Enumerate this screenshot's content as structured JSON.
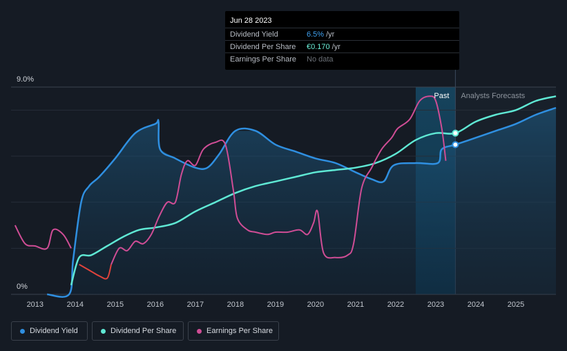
{
  "tooltip": {
    "date": "Jun 28 2023",
    "rows": [
      {
        "label": "Dividend Yield",
        "value": "6.5%",
        "unit": "/yr",
        "color": "#3fa0ef"
      },
      {
        "label": "Dividend Per Share",
        "value": "€0.170",
        "unit": "/yr",
        "color": "#6cf0d9"
      },
      {
        "label": "Earnings Per Share",
        "value": "No data",
        "unit": "",
        "color": "#6b7077"
      }
    ]
  },
  "legend": [
    {
      "label": "Dividend Yield",
      "color": "#2f8fe0"
    },
    {
      "label": "Dividend Per Share",
      "color": "#5fe8d4"
    },
    {
      "label": "Earnings Per Share",
      "color": "#cf4d95"
    }
  ],
  "chart_data": {
    "type": "line",
    "ylabel_top": "9.0%",
    "ylabel_bottom": "0%",
    "ylim": [
      0,
      9
    ],
    "xlim": [
      2012.4,
      2026.0
    ],
    "xticks": [
      "2013",
      "2014",
      "2015",
      "2016",
      "2017",
      "2018",
      "2019",
      "2020",
      "2021",
      "2022",
      "2023",
      "2024",
      "2025"
    ],
    "past_label": "Past",
    "forecast_label": "Analysts Forecasts",
    "past_shade_start": 2022.5,
    "now": 2023.49,
    "series": [
      {
        "name": "Dividend Yield",
        "color": "#2f8fe0",
        "points": [
          [
            2013.3,
            0
          ],
          [
            2013.85,
            0
          ],
          [
            2013.95,
            1.5
          ],
          [
            2014.15,
            4.0
          ],
          [
            2014.35,
            4.7
          ],
          [
            2014.6,
            5.1
          ],
          [
            2015.0,
            5.9
          ],
          [
            2015.5,
            7.0
          ],
          [
            2016.0,
            7.4
          ],
          [
            2016.08,
            7.5
          ],
          [
            2016.12,
            6.3
          ],
          [
            2016.5,
            5.9
          ],
          [
            2017.0,
            5.5
          ],
          [
            2017.3,
            5.5
          ],
          [
            2017.6,
            6.1
          ],
          [
            2018.0,
            7.1
          ],
          [
            2018.5,
            7.1
          ],
          [
            2019.0,
            6.5
          ],
          [
            2019.5,
            6.2
          ],
          [
            2020.0,
            5.9
          ],
          [
            2020.5,
            5.7
          ],
          [
            2021.0,
            5.3
          ],
          [
            2021.4,
            5.0
          ],
          [
            2021.7,
            4.9
          ],
          [
            2021.95,
            5.6
          ],
          [
            2022.5,
            5.7
          ],
          [
            2023.05,
            5.7
          ],
          [
            2023.15,
            6.3
          ],
          [
            2023.49,
            6.5
          ],
          [
            2024.0,
            6.8
          ],
          [
            2024.5,
            7.1
          ],
          [
            2025.0,
            7.4
          ],
          [
            2025.5,
            7.8
          ],
          [
            2026.0,
            8.1
          ]
        ]
      },
      {
        "name": "Dividend Per Share",
        "color": "#5fe8d4",
        "points": [
          [
            2013.9,
            0.4
          ],
          [
            2014.1,
            1.6
          ],
          [
            2014.4,
            1.7
          ],
          [
            2014.8,
            2.1
          ],
          [
            2015.2,
            2.5
          ],
          [
            2015.6,
            2.8
          ],
          [
            2016.0,
            2.9
          ],
          [
            2016.5,
            3.1
          ],
          [
            2017.0,
            3.6
          ],
          [
            2017.5,
            4.0
          ],
          [
            2018.0,
            4.4
          ],
          [
            2018.5,
            4.7
          ],
          [
            2019.0,
            4.9
          ],
          [
            2019.5,
            5.1
          ],
          [
            2020.0,
            5.3
          ],
          [
            2020.5,
            5.4
          ],
          [
            2021.0,
            5.5
          ],
          [
            2021.5,
            5.7
          ],
          [
            2022.0,
            6.1
          ],
          [
            2022.5,
            6.7
          ],
          [
            2023.0,
            7.0
          ],
          [
            2023.49,
            7.0
          ],
          [
            2024.0,
            7.5
          ],
          [
            2024.5,
            7.8
          ],
          [
            2025.0,
            8.0
          ],
          [
            2025.5,
            8.4
          ],
          [
            2026.0,
            8.6
          ]
        ]
      },
      {
        "name": "Earnings Per Share",
        "color": "#cf4d95",
        "points": [
          [
            2012.5,
            3.0
          ],
          [
            2012.75,
            2.2
          ],
          [
            2013.0,
            2.1
          ],
          [
            2013.3,
            2.0
          ],
          [
            2013.45,
            2.8
          ],
          [
            2013.7,
            2.6
          ],
          [
            2013.9,
            2.0
          ],
          [
            2014.1,
            1.3
          ],
          [
            2014.4,
            1.0
          ],
          [
            2014.6,
            0.8
          ],
          [
            2014.8,
            0.7
          ],
          [
            2014.9,
            1.3
          ],
          [
            2015.1,
            2.0
          ],
          [
            2015.3,
            1.9
          ],
          [
            2015.5,
            2.3
          ],
          [
            2015.7,
            2.2
          ],
          [
            2015.9,
            2.6
          ],
          [
            2016.1,
            3.4
          ],
          [
            2016.3,
            4.0
          ],
          [
            2016.5,
            4.0
          ],
          [
            2016.65,
            5.2
          ],
          [
            2016.8,
            5.8
          ],
          [
            2017.0,
            5.6
          ],
          [
            2017.2,
            6.3
          ],
          [
            2017.5,
            6.6
          ],
          [
            2017.75,
            6.5
          ],
          [
            2017.95,
            4.5
          ],
          [
            2018.05,
            3.3
          ],
          [
            2018.3,
            2.8
          ],
          [
            2018.5,
            2.7
          ],
          [
            2018.8,
            2.6
          ],
          [
            2019.0,
            2.7
          ],
          [
            2019.3,
            2.7
          ],
          [
            2019.6,
            2.8
          ],
          [
            2019.8,
            2.6
          ],
          [
            2019.95,
            3.1
          ],
          [
            2020.05,
            3.6
          ],
          [
            2020.2,
            1.8
          ],
          [
            2020.5,
            1.6
          ],
          [
            2020.8,
            1.7
          ],
          [
            2020.95,
            2.2
          ],
          [
            2021.15,
            4.6
          ],
          [
            2021.4,
            5.5
          ],
          [
            2021.65,
            6.3
          ],
          [
            2021.9,
            6.8
          ],
          [
            2022.05,
            7.2
          ],
          [
            2022.35,
            7.6
          ],
          [
            2022.6,
            8.4
          ],
          [
            2022.85,
            8.6
          ],
          [
            2023.0,
            8.4
          ],
          [
            2023.15,
            7.2
          ],
          [
            2023.25,
            5.8
          ]
        ],
        "negative_color": "#e0433c",
        "negative_range": [
          2014.05,
          2014.9
        ]
      }
    ],
    "markers": [
      {
        "series": "Dividend Per Share",
        "x": 2023.49,
        "y": 7.0
      },
      {
        "series": "Dividend Yield",
        "x": 2023.49,
        "y": 6.5
      }
    ]
  }
}
